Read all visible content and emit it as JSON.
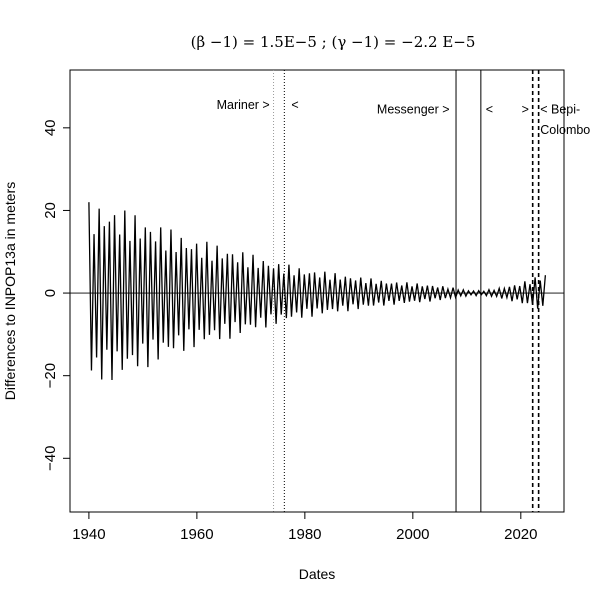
{
  "chart_data": {
    "type": "line",
    "title": "(β −1) = 1.5E−5 ; (γ −1) = −2.2 E−5",
    "xlabel": "Dates",
    "ylabel": "Differences to INPOP13a in meters",
    "xlim": [
      1936.5,
      2028
    ],
    "ylim": [
      -53,
      54
    ],
    "x_ticks": [
      1940,
      1960,
      1980,
      2000,
      2020
    ],
    "y_ticks": [
      -40,
      -20,
      0,
      20,
      40
    ],
    "y_tick_labels": [
      "−40",
      "−20",
      "0",
      "20",
      "40"
    ],
    "reference_line_y": 0,
    "series": [
      {
        "oscillation": {
          "x_start": 1940,
          "x_end": 2024.8,
          "period_years": 0.95,
          "envelope": [
            {
              "x": 1940,
              "amp": 22
            },
            {
              "x": 1945,
              "amp": 21
            },
            {
              "x": 1950,
              "amp": 18.5
            },
            {
              "x": 1955,
              "amp": 15.5
            },
            {
              "x": 1960,
              "amp": 13
            },
            {
              "x": 1965,
              "amp": 11.5
            },
            {
              "x": 1970,
              "amp": 9.5
            },
            {
              "x": 1975,
              "amp": 7.5
            },
            {
              "x": 1980,
              "amp": 6
            },
            {
              "x": 1985,
              "amp": 5
            },
            {
              "x": 1990,
              "amp": 4
            },
            {
              "x": 1995,
              "amp": 3
            },
            {
              "x": 2000,
              "amp": 2.5
            },
            {
              "x": 2005,
              "amp": 1.8
            },
            {
              "x": 2008,
              "amp": 1.2
            },
            {
              "x": 2010,
              "amp": 0.7
            },
            {
              "x": 2013,
              "amp": 0.6
            },
            {
              "x": 2016,
              "amp": 1.2
            },
            {
              "x": 2020,
              "amp": 2.5
            },
            {
              "x": 2022,
              "amp": 3.5
            },
            {
              "x": 2024.8,
              "amp": 5
            }
          ]
        }
      }
    ],
    "missions": [
      {
        "label": "Mariner >",
        "x_label_end": 1973.5,
        "y": 44.5,
        "anchor": "end"
      },
      {
        "label": "<",
        "x_label_end": 1977.5,
        "y": 44.5,
        "anchor": "start"
      },
      {
        "label": "Messenger >",
        "x_label_end": 2006.8,
        "y": 43.5,
        "anchor": "end"
      },
      {
        "label": "<",
        "x_label_end": 2013.5,
        "y": 43.5,
        "anchor": "start"
      },
      {
        "label": ">",
        "x_label_end": 2021.5,
        "y": 43.5,
        "anchor": "end"
      },
      {
        "label": "< Bepi-",
        "x_label_end": 2023.6,
        "y": 43.5,
        "anchor": "start"
      },
      {
        "label": "Colombo",
        "x_label_end": 2023.6,
        "y": 38.5,
        "anchor": "start"
      }
    ],
    "vertical_lines": [
      {
        "x": 1974.2,
        "style": "dotted-light",
        "color": "#9a9a9a"
      },
      {
        "x": 1976.2,
        "style": "dotted",
        "color": "#000000"
      },
      {
        "x": 2008.0,
        "style": "solid",
        "color": "#000000"
      },
      {
        "x": 2012.6,
        "style": "solid",
        "color": "#000000"
      },
      {
        "x": 2022.2,
        "style": "dashed",
        "color": "#000000"
      },
      {
        "x": 2023.3,
        "style": "dashed",
        "color": "#000000"
      }
    ],
    "grid": false,
    "legend": "none"
  }
}
